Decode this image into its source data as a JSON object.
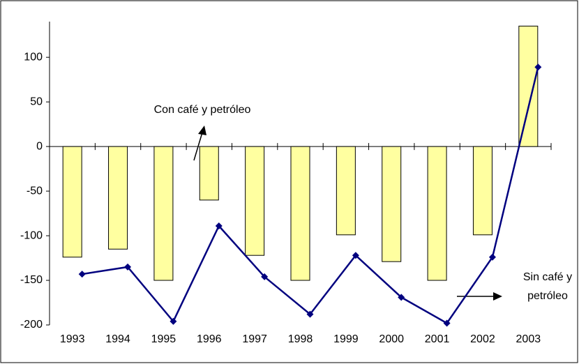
{
  "chart_data": {
    "type": "bar",
    "categories": [
      "1993",
      "1994",
      "1995",
      "1996",
      "1997",
      "1998",
      "1999",
      "2000",
      "2001",
      "2002",
      "2003"
    ],
    "series": [
      {
        "type": "bar",
        "color": "#ffffa0",
        "values": [
          -124,
          -115,
          -150,
          -60,
          -122,
          -150,
          -99,
          -129,
          -150,
          -99,
          135
        ]
      },
      {
        "type": "line",
        "color": "#00007f",
        "values": [
          -143,
          -135,
          -196,
          -89,
          -146,
          -188,
          -122,
          -169,
          -198,
          -124,
          89
        ]
      }
    ],
    "ylim": [
      -200,
      140
    ],
    "yticks": [
      -200,
      -150,
      -100,
      -50,
      0,
      50,
      100
    ],
    "annotations": [
      "Con café y petróleo",
      "Sin café y",
      "petróleo"
    ]
  }
}
